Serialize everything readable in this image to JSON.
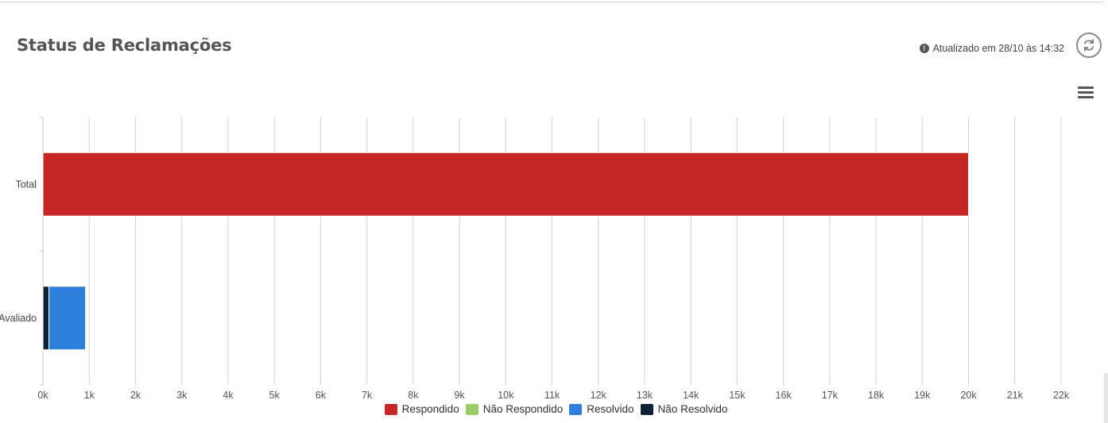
{
  "header": {
    "title": "Status de Reclamações",
    "updated_text": "Atualizado em 28/10 às 14:32",
    "info_icon": "info-icon",
    "refresh_icon": "refresh-icon",
    "menu_icon": "hamburger-menu-icon"
  },
  "chart_data": {
    "type": "bar",
    "orientation": "horizontal",
    "stacked": true,
    "title": "",
    "xlabel": "",
    "ylabel": "",
    "categories": [
      "Total",
      "Avaliado"
    ],
    "xlim": [
      0,
      22000
    ],
    "ticks": [
      0,
      1000,
      2000,
      3000,
      4000,
      5000,
      6000,
      7000,
      8000,
      9000,
      10000,
      11000,
      12000,
      13000,
      14000,
      15000,
      16000,
      17000,
      18000,
      19000,
      20000,
      21000,
      22000
    ],
    "tick_labels": [
      "0k",
      "1k",
      "2k",
      "3k",
      "4k",
      "5k",
      "6k",
      "7k",
      "8k",
      "9k",
      "10k",
      "11k",
      "12k",
      "13k",
      "14k",
      "15k",
      "16k",
      "17k",
      "18k",
      "19k",
      "20k",
      "21k",
      "22k"
    ],
    "grid": true,
    "legend_position": "bottom-center",
    "series": [
      {
        "name": "Respondido",
        "color": "#c62828",
        "values": [
          20000,
          0
        ]
      },
      {
        "name": "Não Respondido",
        "color": "#9ccc65",
        "values": [
          0,
          0
        ]
      },
      {
        "name": "Resolvido",
        "color": "#2f80dc",
        "values": [
          0,
          790
        ]
      },
      {
        "name": "Não Resolvido",
        "color": "#102235",
        "values": [
          0,
          130
        ]
      }
    ]
  }
}
